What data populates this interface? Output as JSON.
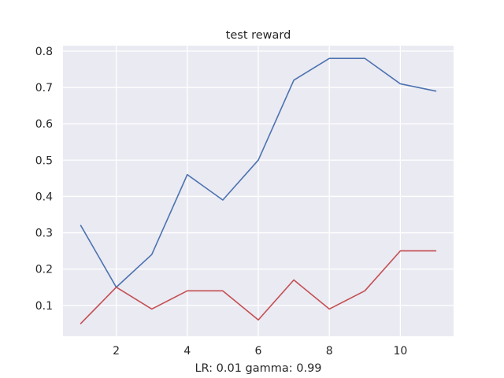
{
  "chart_data": {
    "type": "line",
    "title": "test reward",
    "xlabel": "LR: 0.01 gamma: 0.99",
    "ylabel": "",
    "x": [
      1,
      2,
      3,
      4,
      5,
      6,
      7,
      8,
      9,
      10,
      11
    ],
    "xlim": [
      0.5,
      11.5
    ],
    "ylim": [
      0.015,
      0.815
    ],
    "xticks": [
      2,
      4,
      6,
      8,
      10
    ],
    "yticks": [
      0.1,
      0.2,
      0.3,
      0.4,
      0.5,
      0.6,
      0.7,
      0.8
    ],
    "xtick_labels": [
      "2",
      "4",
      "6",
      "8",
      "10"
    ],
    "ytick_labels": [
      "0.1",
      "0.2",
      "0.3",
      "0.4",
      "0.5",
      "0.6",
      "0.7",
      "0.8"
    ],
    "grid": true,
    "background": "#eaeaf2",
    "grid_color": "#ffffff",
    "series": [
      {
        "color": "#4c72b0",
        "values": [
          0.32,
          0.15,
          0.24,
          0.46,
          0.39,
          0.5,
          0.72,
          0.78,
          0.78,
          0.71,
          0.69
        ]
      },
      {
        "color": "#c44e52",
        "values": [
          0.05,
          0.15,
          0.09,
          0.14,
          0.14,
          0.06,
          0.17,
          0.09,
          0.14,
          0.25,
          0.25
        ]
      }
    ]
  }
}
